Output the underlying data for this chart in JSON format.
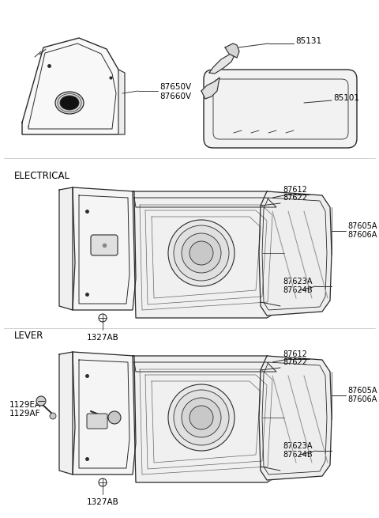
{
  "bg_color": "#ffffff",
  "line_color": "#2a2a2a",
  "text_color": "#000000",
  "part_labels": {
    "top_left": [
      "87650V",
      "87660V"
    ],
    "top_right_upper": "85131",
    "top_right_lower": "85101",
    "elec_label": "ELECTRICAL",
    "elec_bottom": "1327AB",
    "elec_right_top": [
      "87612",
      "87622"
    ],
    "elec_right_mid": [
      "87605A",
      "87606A"
    ],
    "elec_right_low": [
      "87623A",
      "87624B"
    ],
    "lever_label": "LEVER",
    "lever_bottom": "1327AB",
    "lever_left": [
      "1129EA",
      "1129AF"
    ],
    "lever_right_top": [
      "87612",
      "87622"
    ],
    "lever_right_mid": [
      "87605A",
      "87606A"
    ],
    "lever_right_low": [
      "87623A",
      "87624B"
    ]
  },
  "figsize": [
    4.8,
    6.55
  ],
  "dpi": 100
}
